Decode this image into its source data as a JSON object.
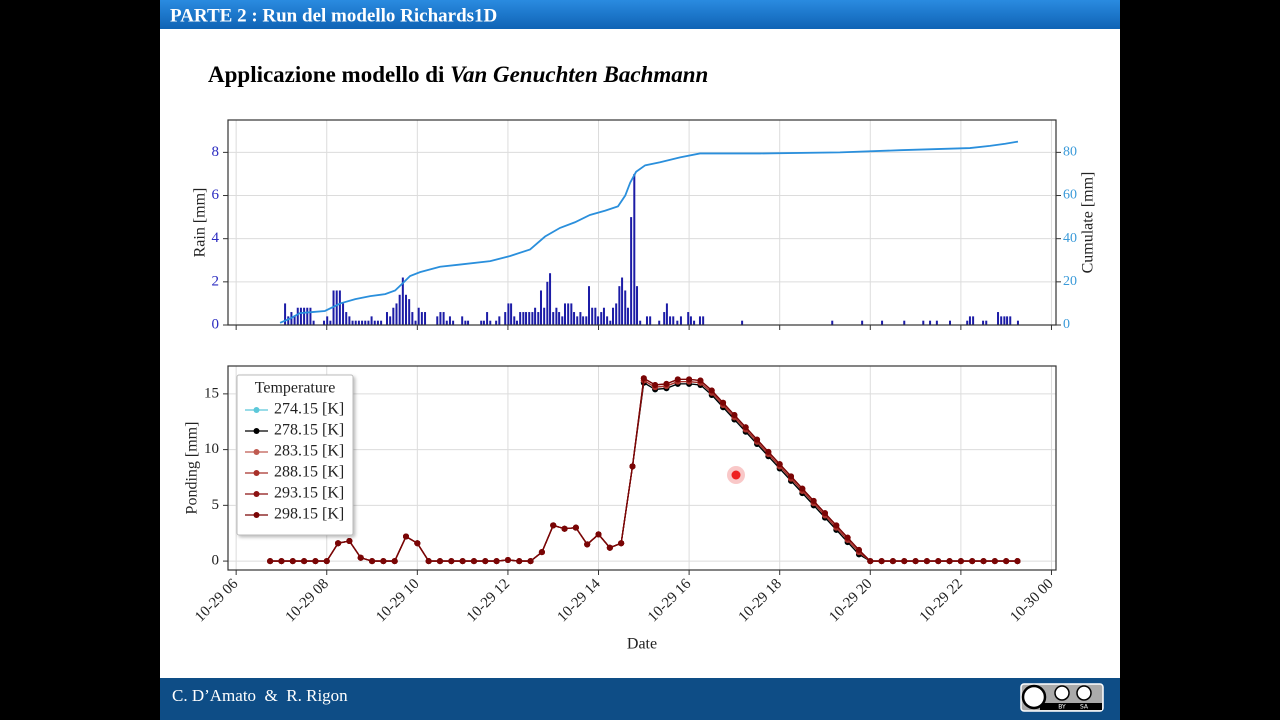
{
  "header": {
    "title": "PARTE 2 : Run del modello Richards1D"
  },
  "slide": {
    "title_prefix": "Applicazione modello di ",
    "title_italic": "Van Genuchten Bachmann"
  },
  "footer": {
    "authors": "C. D’Amato  &  R. Rigon"
  },
  "license": {
    "by": "BY",
    "sa": "SA"
  },
  "chart_data": [
    {
      "type": "combo",
      "ylabel": "Rain [mm]",
      "y2label": "Cumulate [mm]",
      "xlim": [
        5.82,
        24.1
      ],
      "xticks": [
        6,
        8,
        10,
        12,
        14,
        16,
        18,
        20,
        22,
        24
      ],
      "xtick_labels": false,
      "ylim": [
        0,
        9.5
      ],
      "yticks": [
        0,
        2,
        4,
        6,
        8
      ],
      "y2lim": [
        0,
        95
      ],
      "y2ticks": [
        0,
        20,
        40,
        60,
        80
      ],
      "grid": true,
      "series": [
        {
          "type": "bar",
          "color": "#1c1ca6",
          "x": [
            7.08,
            7.15,
            7.22,
            7.29,
            7.36,
            7.43,
            7.5,
            7.57,
            7.64,
            7.71,
            7.94,
            8.01,
            8.08,
            8.15,
            8.22,
            8.29,
            8.36,
            8.43,
            8.5,
            8.57,
            8.64,
            8.71,
            8.78,
            8.85,
            8.92,
            8.99,
            9.06,
            9.13,
            9.2,
            9.33,
            9.4,
            9.47,
            9.54,
            9.61,
            9.68,
            9.75,
            9.82,
            9.89,
            9.96,
            10.03,
            10.1,
            10.17,
            10.44,
            10.51,
            10.58,
            10.65,
            10.72,
            10.79,
            10.99,
            11.06,
            11.12,
            11.41,
            11.47,
            11.54,
            11.61,
            11.74,
            11.81,
            11.94,
            12.01,
            12.07,
            12.14,
            12.2,
            12.27,
            12.34,
            12.4,
            12.47,
            12.54,
            12.6,
            12.67,
            12.73,
            12.8,
            12.87,
            12.93,
            13.0,
            13.07,
            13.13,
            13.2,
            13.26,
            13.33,
            13.4,
            13.46,
            13.53,
            13.6,
            13.66,
            13.73,
            13.79,
            13.86,
            13.93,
            13.99,
            14.06,
            14.12,
            14.19,
            14.26,
            14.32,
            14.39,
            14.46,
            14.52,
            14.59,
            14.65,
            14.72,
            14.79,
            14.85,
            14.92,
            15.07,
            15.14,
            15.34,
            15.45,
            15.51,
            15.58,
            15.65,
            15.74,
            15.82,
            15.98,
            16.04,
            16.11,
            16.24,
            16.31,
            17.17,
            19.16,
            19.82,
            20.26,
            20.75,
            21.17,
            21.32,
            21.47,
            21.76,
            22.14,
            22.2,
            22.27,
            22.49,
            22.56,
            22.82,
            22.89,
            22.96,
            23.02,
            23.09,
            23.26
          ],
          "values": [
            1.0,
            0.4,
            0.6,
            0.4,
            0.8,
            0.8,
            0.8,
            0.8,
            0.8,
            0.2,
            0.2,
            0.4,
            0.2,
            1.6,
            1.6,
            1.6,
            1.0,
            0.6,
            0.4,
            0.2,
            0.2,
            0.2,
            0.2,
            0.2,
            0.2,
            0.4,
            0.2,
            0.2,
            0.2,
            0.6,
            0.4,
            0.8,
            1.0,
            1.4,
            2.2,
            1.4,
            1.2,
            0.6,
            0.2,
            0.8,
            0.6,
            0.6,
            0.4,
            0.6,
            0.6,
            0.2,
            0.4,
            0.2,
            0.4,
            0.2,
            0.2,
            0.2,
            0.2,
            0.6,
            0.2,
            0.2,
            0.4,
            0.6,
            1.0,
            1.0,
            0.4,
            0.2,
            0.6,
            0.6,
            0.6,
            0.6,
            0.6,
            0.8,
            0.6,
            1.6,
            0.8,
            2.0,
            2.4,
            0.6,
            0.8,
            0.6,
            0.4,
            1.0,
            1.0,
            1.0,
            0.6,
            0.4,
            0.6,
            0.4,
            0.4,
            1.8,
            0.8,
            0.8,
            0.4,
            0.6,
            0.8,
            0.4,
            0.2,
            0.8,
            1.0,
            1.8,
            2.2,
            1.6,
            0.8,
            5.0,
            7.0,
            1.8,
            0.2,
            0.4,
            0.4,
            0.2,
            0.6,
            1.0,
            0.4,
            0.4,
            0.2,
            0.4,
            0.6,
            0.4,
            0.2,
            0.4,
            0.4,
            0.2,
            0.2,
            0.2,
            0.2,
            0.2,
            0.2,
            0.2,
            0.2,
            0.2,
            0.2,
            0.4,
            0.4,
            0.2,
            0.2,
            0.6,
            0.4,
            0.4,
            0.4,
            0.4,
            0.2
          ]
        },
        {
          "type": "line",
          "axis": "y2",
          "color": "#2a8fdc",
          "x": [
            6.97,
            7.19,
            7.41,
            7.68,
            7.96,
            8.3,
            8.63,
            8.96,
            9.29,
            9.51,
            9.66,
            9.84,
            10.06,
            10.5,
            10.94,
            11.61,
            12.05,
            12.49,
            12.82,
            13.15,
            13.48,
            13.81,
            14.15,
            14.43,
            14.59,
            14.7,
            14.83,
            15.03,
            15.36,
            15.8,
            16.24,
            17.57,
            19.33,
            20.66,
            22.2,
            22.64,
            22.98,
            23.26
          ],
          "values": [
            1,
            3,
            5.5,
            6,
            6.5,
            10,
            12,
            13.4,
            14.3,
            16,
            19,
            22.7,
            24.5,
            27,
            28,
            29.6,
            32,
            35,
            41,
            45,
            47.6,
            51,
            53,
            55,
            60,
            66,
            71,
            74,
            75.4,
            77.7,
            79.5,
            79.5,
            80,
            81,
            82,
            83,
            84,
            85
          ]
        }
      ]
    },
    {
      "type": "line",
      "ylabel": "Ponding [mm]",
      "xlabel": "Date",
      "xlim": [
        5.82,
        24.1
      ],
      "xticks": [
        {
          "value": 6,
          "label": "10-29 06"
        },
        {
          "value": 8,
          "label": "10-29 08"
        },
        {
          "value": 10,
          "label": "10-29 10"
        },
        {
          "value": 12,
          "label": "10-29 12"
        },
        {
          "value": 14,
          "label": "10-29 14"
        },
        {
          "value": 16,
          "label": "10-29 16"
        },
        {
          "value": 18,
          "label": "10-29 18"
        },
        {
          "value": 20,
          "label": "10-29 20"
        },
        {
          "value": 22,
          "label": "10-29 22"
        },
        {
          "value": 24,
          "label": "10-30 00"
        }
      ],
      "ylim": [
        -0.8,
        17.5
      ],
      "yticks": [
        0,
        5,
        10,
        15
      ],
      "grid": true,
      "legend": "upper left",
      "legend_title": "Temperature",
      "x": [
        6.75,
        7,
        7.25,
        7.5,
        7.75,
        8,
        8.25,
        8.5,
        8.75,
        9,
        9.25,
        9.5,
        9.75,
        10,
        10.25,
        10.5,
        10.75,
        11,
        11.25,
        11.5,
        11.75,
        12,
        12.25,
        12.5,
        12.75,
        13,
        13.25,
        13.5,
        13.75,
        14,
        14.25,
        14.5,
        14.75,
        15,
        15.25,
        15.5,
        15.75,
        16,
        16.25,
        16.5,
        16.75,
        17,
        17.25,
        17.5,
        17.75,
        18,
        18.25,
        18.5,
        18.75,
        19,
        19.25,
        19.5,
        19.75,
        20,
        20.25,
        20.5,
        20.75,
        21,
        21.25,
        21.5,
        21.75,
        22,
        22.25,
        22.5,
        22.75,
        23,
        23.25
      ],
      "series": [
        {
          "name": "274.15 [K]",
          "color": "#5cc8d9",
          "values": [
            0,
            0,
            0,
            0,
            0,
            0,
            1.6,
            1.8,
            0.3,
            0,
            0,
            0,
            2.2,
            1.6,
            0,
            0,
            0,
            0,
            0,
            0,
            0,
            0.1,
            0,
            0,
            0.8,
            3.2,
            2.9,
            3.0,
            1.5,
            2.4,
            1.2,
            1.6,
            8.5,
            16.0,
            15.4,
            15.5,
            15.9,
            15.9,
            15.8,
            14.9,
            13.8,
            12.7,
            11.6,
            10.5,
            9.4,
            8.3,
            7.2,
            6.1,
            5.0,
            3.9,
            2.8,
            1.7,
            0.6,
            0,
            0,
            0,
            0,
            0,
            0,
            0,
            0,
            0,
            0,
            0,
            0,
            0,
            0
          ]
        },
        {
          "name": "278.15 [K]",
          "color": "#000000",
          "values": [
            0,
            0,
            0,
            0,
            0,
            0,
            1.6,
            1.8,
            0.3,
            0,
            0,
            0,
            2.2,
            1.6,
            0,
            0,
            0,
            0,
            0,
            0,
            0,
            0.1,
            0,
            0,
            0.8,
            3.2,
            2.9,
            3.0,
            1.5,
            2.4,
            1.2,
            1.6,
            8.5,
            16.0,
            15.4,
            15.5,
            15.9,
            15.9,
            15.8,
            14.9,
            13.8,
            12.7,
            11.6,
            10.5,
            9.4,
            8.3,
            7.2,
            6.1,
            5.0,
            3.9,
            2.8,
            1.7,
            0.6,
            0,
            0,
            0,
            0,
            0,
            0,
            0,
            0,
            0,
            0,
            0,
            0,
            0,
            0
          ]
        },
        {
          "name": "283.15 [K]",
          "color": "#bf5a50",
          "values": [
            0,
            0,
            0,
            0,
            0,
            0,
            1.6,
            1.8,
            0.3,
            0,
            0,
            0,
            2.2,
            1.6,
            0,
            0,
            0,
            0,
            0,
            0,
            0,
            0.1,
            0,
            0,
            0.8,
            3.2,
            2.9,
            3.0,
            1.5,
            2.4,
            1.2,
            1.6,
            8.5,
            16.2,
            15.6,
            15.7,
            16.1,
            16.1,
            16.0,
            15.1,
            14.0,
            12.9,
            11.8,
            10.7,
            9.6,
            8.5,
            7.4,
            6.3,
            5.2,
            4.1,
            3.0,
            1.9,
            0.8,
            0,
            0,
            0,
            0,
            0,
            0,
            0,
            0,
            0,
            0,
            0,
            0,
            0,
            0
          ]
        },
        {
          "name": "288.15 [K]",
          "color": "#a8302a",
          "values": [
            0,
            0,
            0,
            0,
            0,
            0,
            1.6,
            1.8,
            0.3,
            0,
            0,
            0,
            2.2,
            1.6,
            0,
            0,
            0,
            0,
            0,
            0,
            0,
            0.1,
            0,
            0,
            0.8,
            3.2,
            2.9,
            3.0,
            1.5,
            2.4,
            1.2,
            1.6,
            8.5,
            16.2,
            15.6,
            15.7,
            16.1,
            16.1,
            16.0,
            15.1,
            14.0,
            12.9,
            11.8,
            10.7,
            9.6,
            8.5,
            7.4,
            6.3,
            5.2,
            4.1,
            3.0,
            1.9,
            0.8,
            0,
            0,
            0,
            0,
            0,
            0,
            0,
            0,
            0,
            0,
            0,
            0,
            0,
            0
          ]
        },
        {
          "name": "293.15 [K]",
          "color": "#8c1212",
          "values": [
            0,
            0,
            0,
            0,
            0,
            0,
            1.6,
            1.8,
            0.3,
            0,
            0,
            0,
            2.2,
            1.6,
            0,
            0,
            0,
            0,
            0,
            0,
            0,
            0.1,
            0,
            0,
            0.8,
            3.2,
            2.9,
            3.0,
            1.5,
            2.4,
            1.2,
            1.6,
            8.5,
            16.4,
            15.8,
            15.9,
            16.3,
            16.3,
            16.2,
            15.3,
            14.2,
            13.1,
            12.0,
            10.9,
            9.8,
            8.7,
            7.6,
            6.5,
            5.4,
            4.3,
            3.2,
            2.1,
            1.0,
            0,
            0,
            0,
            0,
            0,
            0,
            0,
            0,
            0,
            0,
            0,
            0,
            0,
            0
          ]
        },
        {
          "name": "298.15 [K]",
          "color": "#7a0505",
          "values": [
            0,
            0,
            0,
            0,
            0,
            0,
            1.6,
            1.8,
            0.3,
            0,
            0,
            0,
            2.2,
            1.6,
            0,
            0,
            0,
            0,
            0,
            0,
            0,
            0.1,
            0,
            0,
            0.8,
            3.2,
            2.9,
            3.0,
            1.5,
            2.4,
            1.2,
            1.6,
            8.5,
            16.4,
            15.8,
            15.9,
            16.3,
            16.3,
            16.2,
            15.3,
            14.2,
            13.1,
            12.0,
            10.9,
            9.8,
            8.7,
            7.6,
            6.5,
            5.4,
            4.3,
            3.2,
            2.1,
            1.0,
            0,
            0,
            0,
            0,
            0,
            0,
            0,
            0,
            0,
            0,
            0,
            0,
            0,
            0
          ]
        }
      ]
    }
  ]
}
